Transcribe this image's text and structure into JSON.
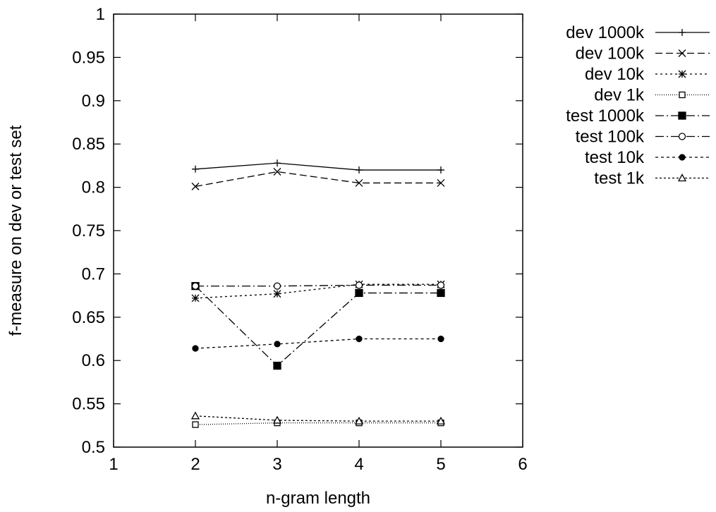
{
  "chart_data": {
    "type": "line",
    "title": "",
    "xlabel": "n-gram length",
    "ylabel": "f-measure on dev or test set",
    "xlim": [
      1,
      6
    ],
    "ylim": [
      0.5,
      1
    ],
    "xticks": [
      "1",
      "2",
      "3",
      "4",
      "5",
      "6"
    ],
    "yticks": [
      "0.5",
      "0.55",
      "0.6",
      "0.65",
      "0.7",
      "0.75",
      "0.8",
      "0.85",
      "0.9",
      "0.95",
      "1"
    ],
    "grid": false,
    "legend_position": "outside-right",
    "x": [
      2,
      3,
      4,
      5
    ],
    "series": [
      {
        "name": "dev 1000k",
        "values": [
          0.821,
          0.828,
          0.82,
          0.82
        ],
        "marker": "plus",
        "dash": ""
      },
      {
        "name": "dev 100k",
        "values": [
          0.801,
          0.818,
          0.805,
          0.805
        ],
        "marker": "cross",
        "dash": "10,5"
      },
      {
        "name": "dev 10k",
        "values": [
          0.672,
          0.677,
          0.688,
          0.688
        ],
        "marker": "star",
        "dash": "3,4"
      },
      {
        "name": "dev 1k",
        "values": [
          0.526,
          0.528,
          0.528,
          0.528
        ],
        "marker": "square-open",
        "dash": "1,2"
      },
      {
        "name": "test 1000k",
        "values": [
          0.686,
          0.594,
          0.678,
          0.678
        ],
        "marker": "square-filled",
        "dash": "12,4,2,4"
      },
      {
        "name": "test 100k",
        "values": [
          0.686,
          0.686,
          0.687,
          0.687
        ],
        "marker": "circle-open",
        "dash": "12,4,2,4"
      },
      {
        "name": "test 10k",
        "values": [
          0.614,
          0.619,
          0.625,
          0.625
        ],
        "marker": "circle-filled",
        "dash": "4,4"
      },
      {
        "name": "test 1k",
        "values": [
          0.536,
          0.531,
          0.53,
          0.53
        ],
        "marker": "triangle-open",
        "dash": "3,3"
      }
    ]
  }
}
